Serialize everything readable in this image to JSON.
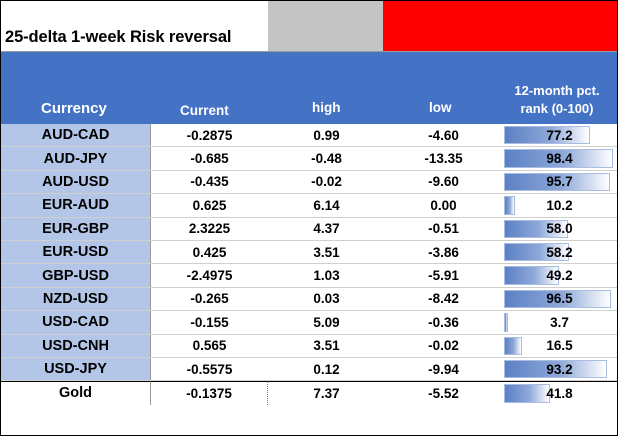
{
  "title": "25-delta 1-week Risk reversal",
  "colors": {
    "header_blue": "#4472c4",
    "currency_column": "#b4c6e7",
    "title_grey": "#c4c4c4",
    "title_red": "#ff0000",
    "bar_blue": "#5b80c4"
  },
  "headers": {
    "currency": "Currency",
    "current": "Current",
    "high": "high",
    "low": "low",
    "rank": "12-month pct. rank (0-100)"
  },
  "chart_data": {
    "type": "table",
    "title": "25-delta 1-week Risk reversal",
    "columns": [
      "Currency",
      "Current",
      "high",
      "low",
      "12-month pct. rank (0-100)"
    ],
    "rows": [
      {
        "currency": "AUD-CAD",
        "current": "-0.2875",
        "high": "0.99",
        "low": "-4.60",
        "rank": "77.2",
        "rank_value": 77.2
      },
      {
        "currency": "AUD-JPY",
        "current": "-0.685",
        "high": "-0.48",
        "low": "-13.35",
        "rank": "98.4",
        "rank_value": 98.4
      },
      {
        "currency": "AUD-USD",
        "current": "-0.435",
        "high": "-0.02",
        "low": "-9.60",
        "rank": "95.7",
        "rank_value": 95.7
      },
      {
        "currency": "EUR-AUD",
        "current": "0.625",
        "high": "6.14",
        "low": "0.00",
        "rank": "10.2",
        "rank_value": 10.2
      },
      {
        "currency": "EUR-GBP",
        "current": "2.3225",
        "high": "4.37",
        "low": "-0.51",
        "rank": "58.0",
        "rank_value": 58.0
      },
      {
        "currency": "EUR-USD",
        "current": "0.425",
        "high": "3.51",
        "low": "-3.86",
        "rank": "58.2",
        "rank_value": 58.2
      },
      {
        "currency": "GBP-USD",
        "current": "-2.4975",
        "high": "1.03",
        "low": "-5.91",
        "rank": "49.2",
        "rank_value": 49.2
      },
      {
        "currency": "NZD-USD",
        "current": "-0.265",
        "high": "0.03",
        "low": "-8.42",
        "rank": "96.5",
        "rank_value": 96.5
      },
      {
        "currency": "USD-CAD",
        "current": "-0.155",
        "high": "5.09",
        "low": "-0.36",
        "rank": "3.7",
        "rank_value": 3.7
      },
      {
        "currency": "USD-CNH",
        "current": "0.565",
        "high": "3.51",
        "low": "-0.02",
        "rank": "16.5",
        "rank_value": 16.5
      },
      {
        "currency": "USD-JPY",
        "current": "-0.5575",
        "high": "0.12",
        "low": "-9.94",
        "rank": "93.2",
        "rank_value": 93.2
      },
      {
        "currency": "Gold",
        "current": "-0.1375",
        "high": "7.37",
        "low": "-5.52",
        "rank": "41.8",
        "rank_value": 41.8
      }
    ]
  }
}
